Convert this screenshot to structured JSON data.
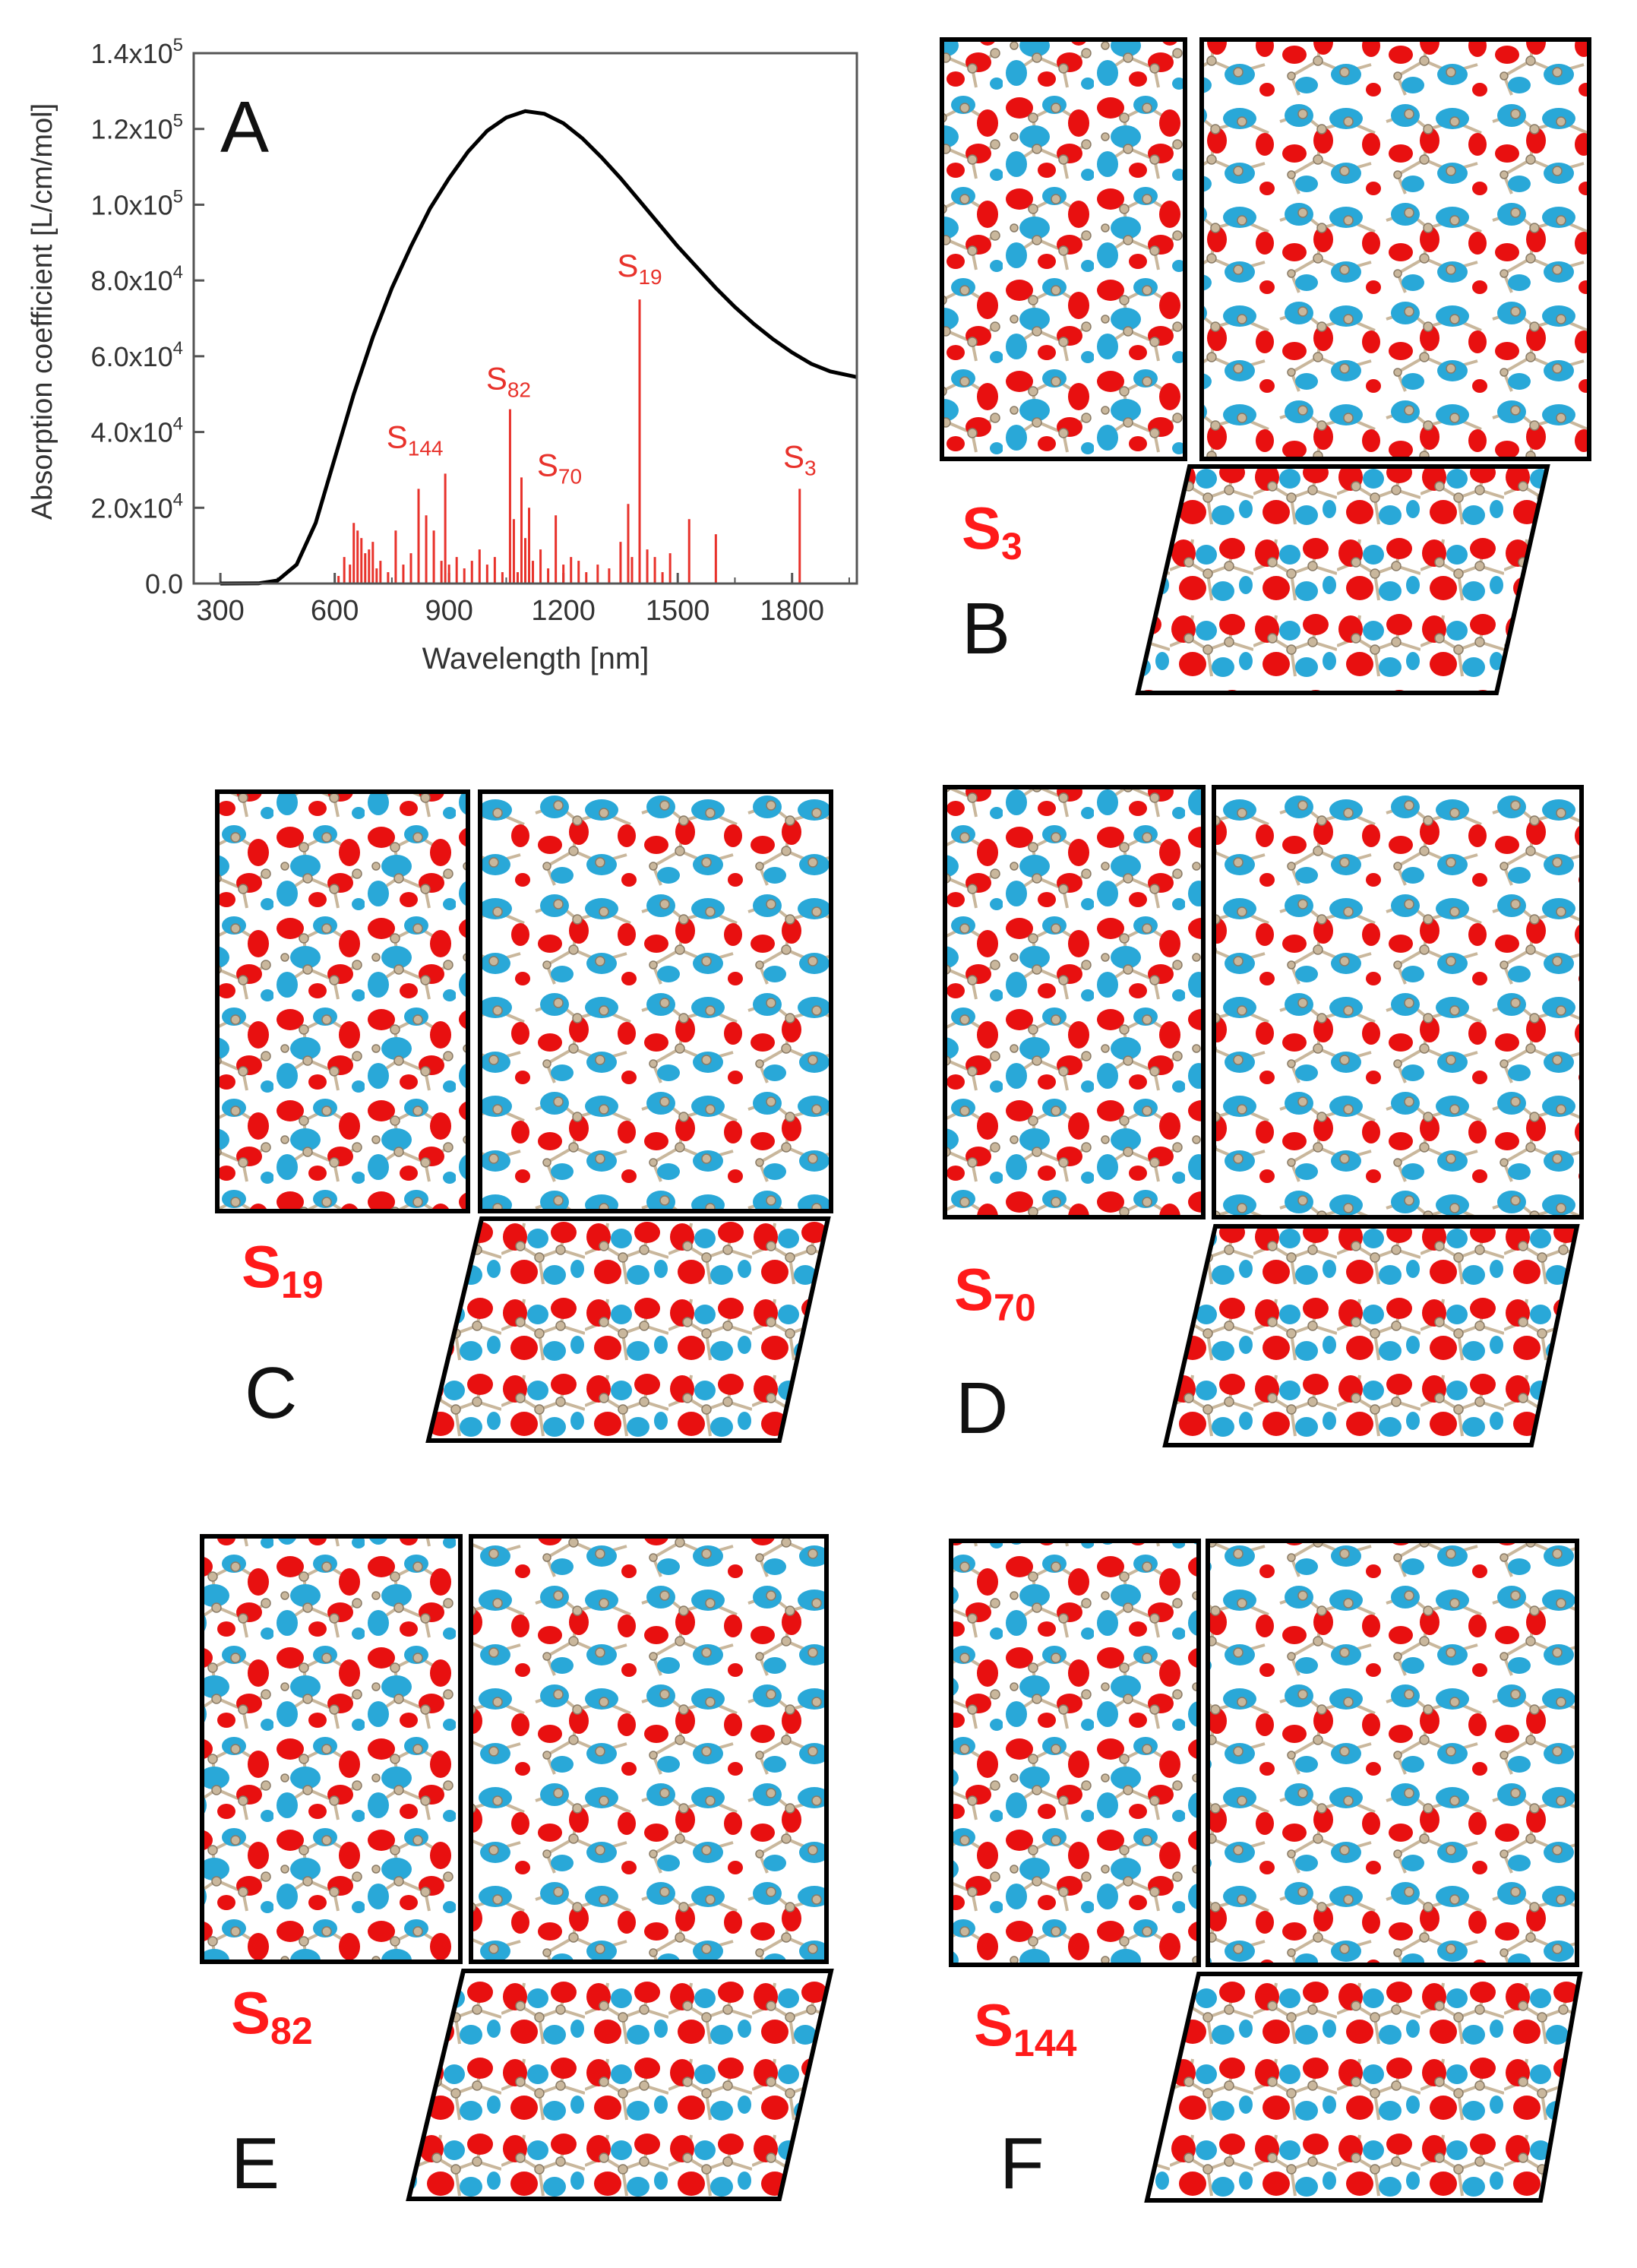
{
  "figure": {
    "panel_letters": {
      "A": "A",
      "B": "B",
      "C": "C",
      "D": "D",
      "E": "E",
      "F": "F"
    },
    "state_labels": {
      "B": {
        "base": "S",
        "sub": "3"
      },
      "C": {
        "base": "S",
        "sub": "19"
      },
      "D": {
        "base": "S",
        "sub": "70"
      },
      "E": {
        "base": "S",
        "sub": "82"
      },
      "F": {
        "base": "S",
        "sub": "144"
      }
    },
    "isosurface_colors": {
      "positive": "#e81010",
      "negative": "#29a8d8",
      "atoms": "#c9b79c"
    }
  },
  "chart_data": {
    "type": "line",
    "title": "",
    "panel": "A",
    "xlabel": "Wavelength [nm]",
    "ylabel": "Absorption coefficient [L/cm/mol]",
    "xlim": [
      230,
      1970
    ],
    "ylim": [
      0,
      140000
    ],
    "x_ticks": [
      300,
      600,
      900,
      1200,
      1500,
      1800
    ],
    "x_tick_labels": [
      "300",
      "600",
      "900",
      "1200",
      "1500",
      "1800"
    ],
    "y_ticks": [
      0,
      20000,
      40000,
      60000,
      80000,
      100000,
      120000,
      140000
    ],
    "y_tick_labels": [
      {
        "mant": "0.0",
        "exp": ""
      },
      {
        "mant": "2.0x10",
        "exp": "4"
      },
      {
        "mant": "4.0x10",
        "exp": "4"
      },
      {
        "mant": "6.0x10",
        "exp": "4"
      },
      {
        "mant": "8.0x10",
        "exp": "4"
      },
      {
        "mant": "1.0x10",
        "exp": "5"
      },
      {
        "mant": "1.2x10",
        "exp": "5"
      },
      {
        "mant": "1.4x10",
        "exp": "5"
      }
    ],
    "series": [
      {
        "name": "absorption envelope",
        "color": "#000000",
        "x": [
          300,
          400,
          450,
          500,
          550,
          600,
          650,
          700,
          750,
          800,
          850,
          900,
          950,
          1000,
          1050,
          1100,
          1150,
          1200,
          1250,
          1300,
          1350,
          1400,
          1450,
          1500,
          1550,
          1600,
          1650,
          1700,
          1750,
          1800,
          1850,
          1900,
          1970
        ],
        "y": [
          0,
          50,
          800,
          5000,
          16000,
          33000,
          50000,
          65000,
          78000,
          89000,
          99000,
          107000,
          114000,
          119500,
          123000,
          124700,
          124000,
          121500,
          117500,
          112500,
          107000,
          101000,
          95000,
          89000,
          83500,
          78000,
          73000,
          68500,
          64500,
          61000,
          58000,
          56000,
          54500
        ]
      }
    ],
    "stick_spectrum": {
      "color": "#e8322b",
      "x": [
        610,
        625,
        640,
        650,
        660,
        670,
        680,
        690,
        700,
        710,
        720,
        740,
        760,
        780,
        800,
        820,
        840,
        860,
        880,
        890,
        900,
        920,
        940,
        960,
        980,
        1000,
        1020,
        1040,
        1060,
        1070,
        1080,
        1090,
        1100,
        1110,
        1120,
        1140,
        1160,
        1180,
        1200,
        1220,
        1240,
        1260,
        1290,
        1320,
        1350,
        1370,
        1380,
        1400,
        1420,
        1440,
        1460,
        1480,
        1530,
        1600,
        1820
      ],
      "y": [
        2000,
        7000,
        5000,
        16000,
        14000,
        12000,
        8000,
        9000,
        11000,
        4000,
        6000,
        3000,
        14000,
        5000,
        8000,
        25000,
        18000,
        14000,
        6000,
        29000,
        5000,
        7000,
        4000,
        6000,
        9000,
        5000,
        7000,
        3000,
        46000,
        17000,
        3000,
        28000,
        12000,
        20000,
        6000,
        9000,
        4000,
        18000,
        5000,
        7000,
        6000,
        3000,
        5000,
        4000,
        11000,
        21000,
        7000,
        75000,
        9000,
        7000,
        3000,
        8000,
        17000,
        13000,
        25000
      ]
    },
    "annotations": [
      {
        "x": 1400,
        "y": 75000,
        "base": "S",
        "sub": "19"
      },
      {
        "x": 1060,
        "y": 46000,
        "base": "S",
        "sub": "82"
      },
      {
        "x": 890,
        "y": 29000,
        "base": "S",
        "sub": "144"
      },
      {
        "x": 1090,
        "y": 28000,
        "base": "S",
        "sub": "70"
      },
      {
        "x": 1820,
        "y": 25000,
        "base": "S",
        "sub": "3"
      }
    ]
  }
}
